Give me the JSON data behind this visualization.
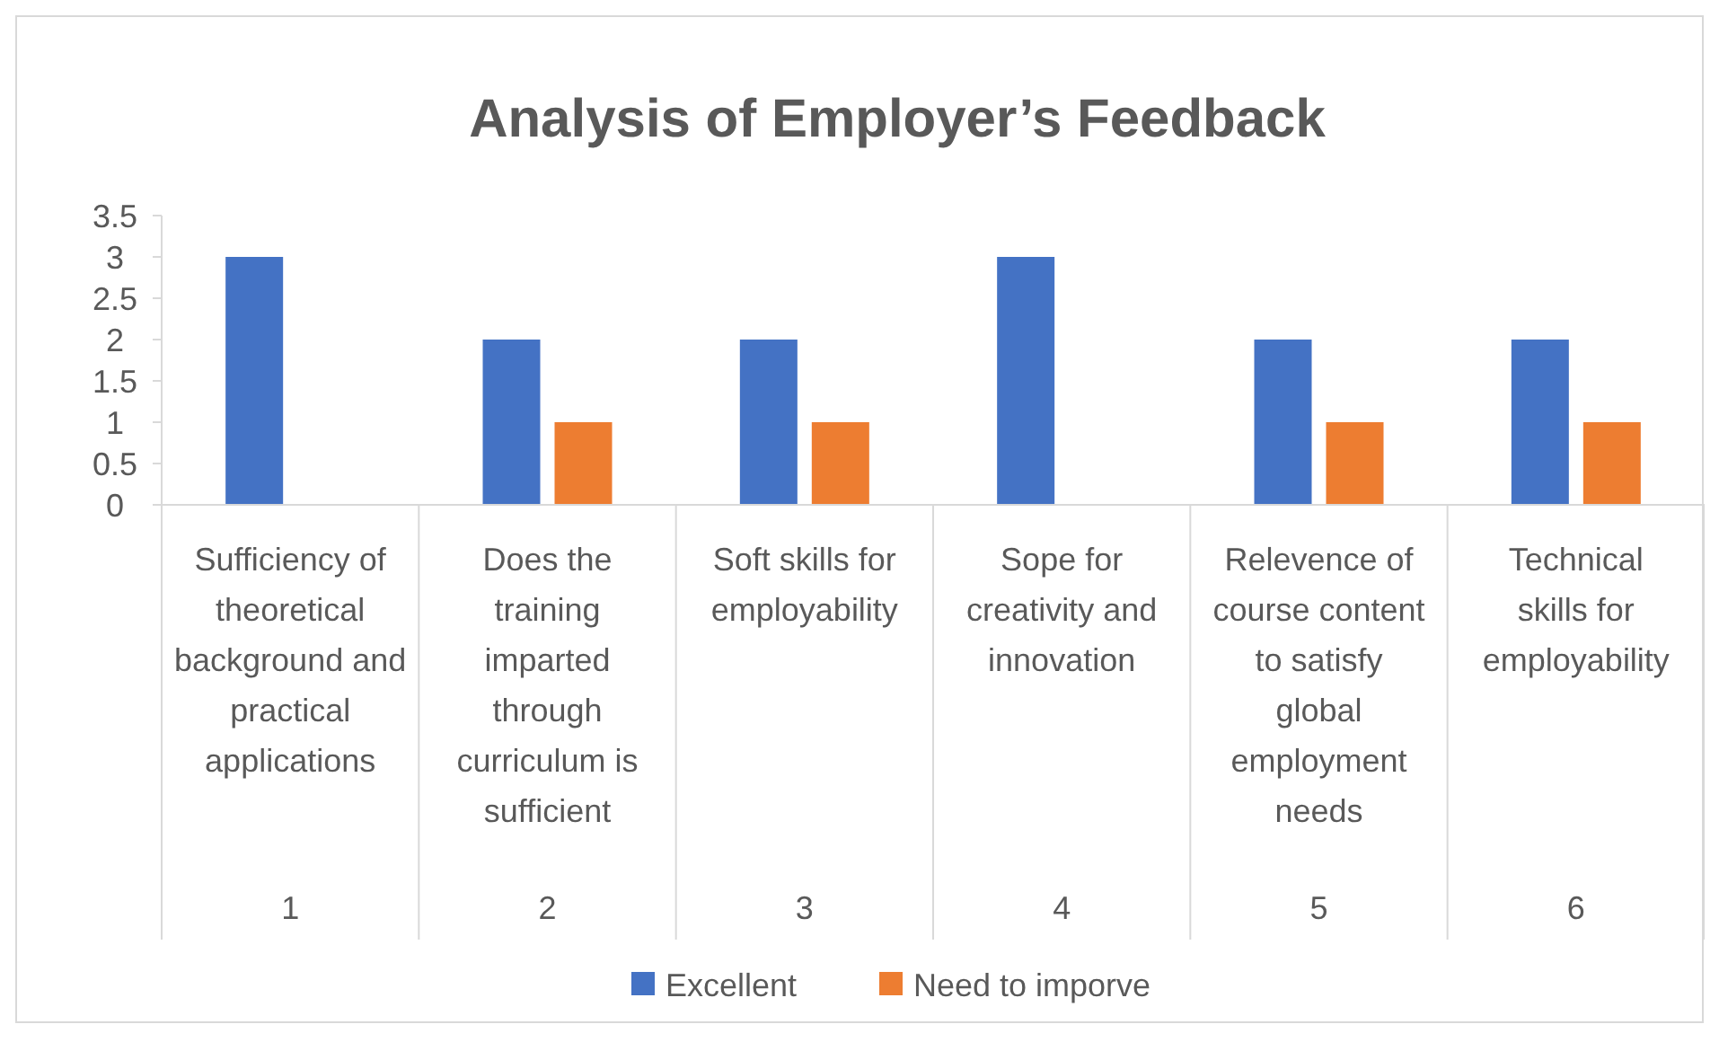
{
  "chart_data": {
    "type": "bar",
    "title": "Analysis of Employer’s Feedback",
    "categories": [
      "Sufficiency of theoretical background and practical applications",
      "Does the training imparted through curriculum is sufficient",
      "Soft skills for employability",
      "Sope for creativity and innovation",
      "Relevence of course content to satisfy global employment needs",
      "Technical skills for employability"
    ],
    "series": [
      {
        "name": "Excellent",
        "color": "#4472c4",
        "values": [
          3,
          2,
          2,
          3,
          2,
          2
        ]
      },
      {
        "name": "Need to imporve",
        "color": "#ed7d31",
        "values": [
          0,
          1,
          1,
          0,
          1,
          1
        ]
      }
    ],
    "ylim": [
      0,
      3.5
    ],
    "yticks": [
      0,
      0.5,
      1,
      1.5,
      2,
      2.5,
      3,
      3.5
    ],
    "grid": false,
    "legend": "bottom",
    "annotations": [
      "1",
      "2",
      "3",
      "4",
      "5",
      "6"
    ]
  }
}
